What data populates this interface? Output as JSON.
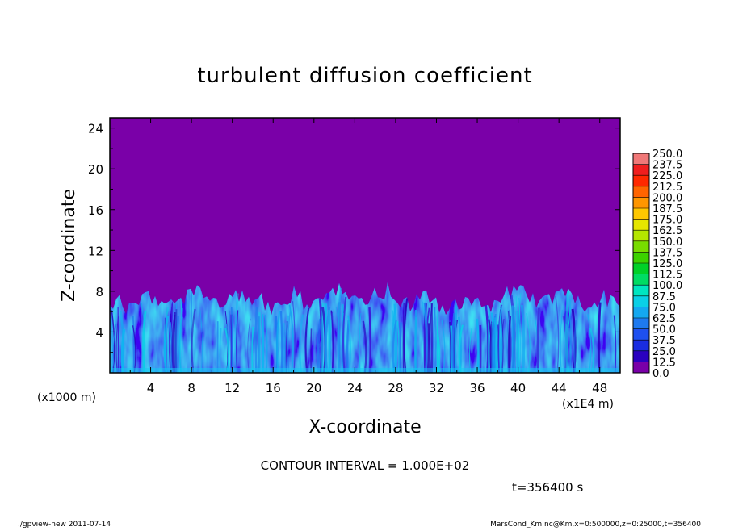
{
  "chart_data": {
    "type": "heatmap",
    "title": "turbulent diffusion coefficient",
    "xlabel": "X-coordinate",
    "ylabel": "Z-coordinate",
    "x_unit_left": "(x1000 m)",
    "x_unit_right": "(x1E4 m)",
    "x_ticks": [
      "4",
      "8",
      "12",
      "16",
      "20",
      "24",
      "28",
      "32",
      "36",
      "40",
      "44",
      "48"
    ],
    "y_ticks": [
      "4",
      "8",
      "12",
      "16",
      "20",
      "24"
    ],
    "xlim": [
      0,
      50
    ],
    "ylim": [
      0,
      25
    ],
    "contour_interval": "CONTOUR INTERVAL = 1.000E+02",
    "time_label": "t=356400 s",
    "colorbar": {
      "levels": [
        "0.0",
        "12.5",
        "25.0",
        "37.5",
        "50.0",
        "62.5",
        "75.0",
        "87.5",
        "100.0",
        "112.5",
        "125.0",
        "137.5",
        "150.0",
        "162.5",
        "175.0",
        "187.5",
        "200.0",
        "212.5",
        "225.0",
        "237.5",
        "250.0"
      ],
      "colors": [
        "#7a00a8",
        "#2a00c0",
        "#1a2ce0",
        "#1e50f0",
        "#1e7af0",
        "#14a8f0",
        "#0ad0e6",
        "#00e6c0",
        "#00dc64",
        "#00d028",
        "#3cd200",
        "#78dc00",
        "#b4e600",
        "#e6e600",
        "#ffc800",
        "#ff9600",
        "#ff6400",
        "#ff2800",
        "#f01e1e",
        "#f07878"
      ]
    },
    "field_description": {
      "background_color": "#7a00a8",
      "turbulent_layer_top_z": 8.5
    }
  },
  "footer": {
    "left": "./gpview-new  2011-07-14",
    "right": "MarsCond_Km.nc@Km,x=0:500000,z=0:25000,t=356400"
  }
}
